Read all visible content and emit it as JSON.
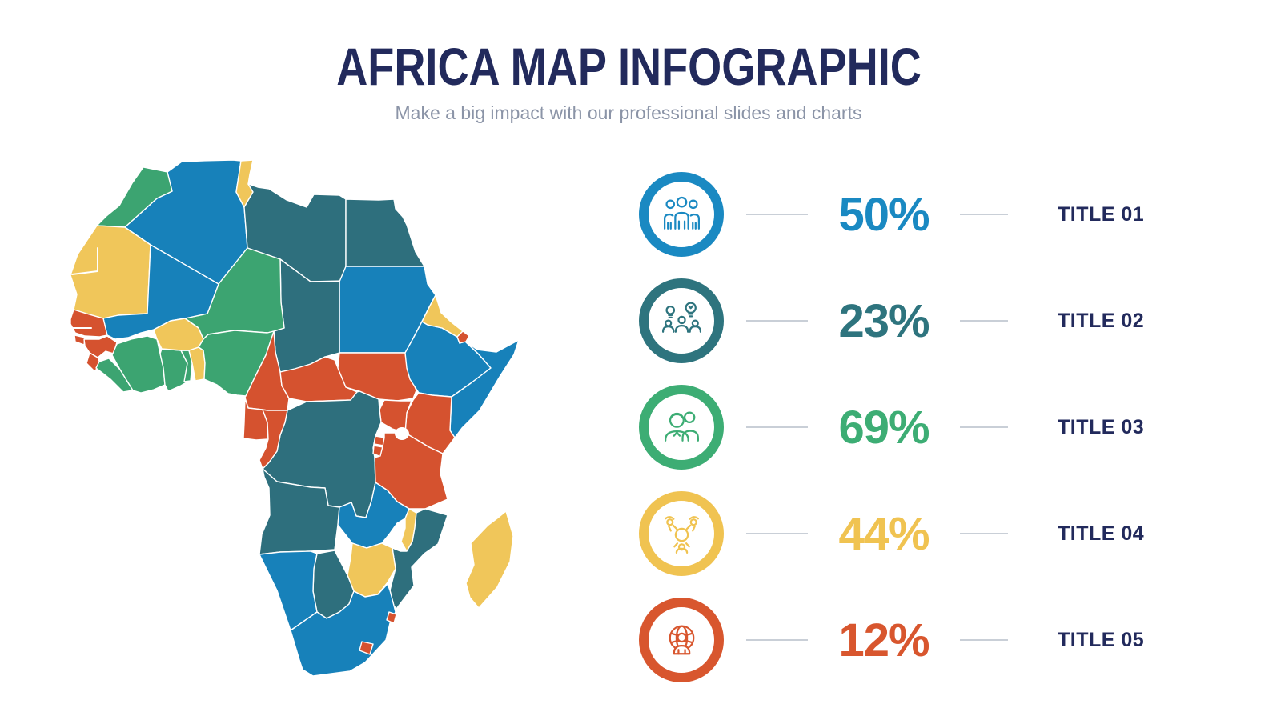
{
  "header": {
    "title": "AFRICA MAP INFOGRAPHIC",
    "subtitle": "Make a big impact with our professional slides and charts"
  },
  "stats": [
    {
      "percent": "50%",
      "label": "TITLE 01",
      "color": "#1a89c2",
      "icon": "team-icon"
    },
    {
      "percent": "23%",
      "label": "TITLE 02",
      "color": "#2e747e",
      "icon": "brainstorm-icon"
    },
    {
      "percent": "69%",
      "label": "TITLE 03",
      "color": "#3dad74",
      "icon": "couple-icon"
    },
    {
      "percent": "44%",
      "label": "TITLE 04",
      "color": "#f0c351",
      "icon": "meeting-icon"
    },
    {
      "percent": "12%",
      "label": "TITLE 05",
      "color": "#d8562e",
      "icon": "globe-person-icon"
    }
  ],
  "map": {
    "palette": {
      "blue": "#1781ba",
      "teal": "#2e6f7d",
      "green": "#3ca471",
      "yellow": "#f0c65a",
      "orange": "#d5522f",
      "border": "#ffffff"
    },
    "countries": {
      "morocco": "green",
      "western-sahara-mauritania": "yellow",
      "algeria": "blue",
      "tunisia": "yellow",
      "libya": "teal",
      "egypt": "teal",
      "sudan": "blue",
      "chad": "teal",
      "niger": "green",
      "mali": "blue",
      "senegal": "orange",
      "guinea-bissau": "orange",
      "guinea": "orange",
      "sierra-leone": "orange",
      "liberia": "green",
      "cote-divoire": "green",
      "ghana": "green",
      "togo": "green",
      "benin": "yellow",
      "burkina-faso": "yellow",
      "nigeria": "green",
      "cameroon": "orange",
      "central-african-republic": "orange",
      "south-sudan": "orange",
      "ethiopia": "blue",
      "eritrea": "yellow",
      "djibouti": "orange",
      "somalia": "blue",
      "kenya": "orange",
      "uganda": "orange",
      "drc": "teal",
      "gabon": "orange",
      "congo": "orange",
      "rwanda": "orange",
      "burundi": "orange",
      "tanzania": "orange",
      "angola": "teal",
      "zambia": "blue",
      "malawi": "yellow",
      "mozambique": "teal",
      "zimbabwe": "yellow",
      "botswana": "teal",
      "namibia": "blue",
      "south-africa": "blue",
      "lesotho": "orange",
      "eswatini": "orange",
      "madagascar": "yellow"
    }
  }
}
